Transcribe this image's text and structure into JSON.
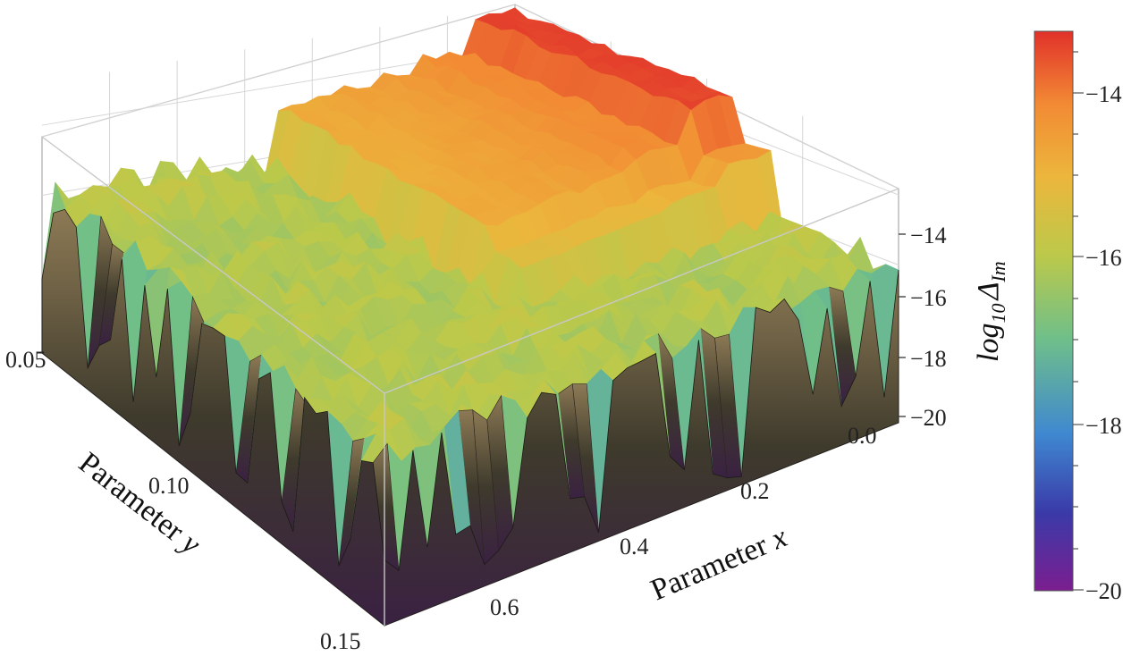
{
  "chart_data": {
    "type": "surface3d",
    "x_axis": {
      "label": "Parameter",
      "var": "x",
      "ticks": [
        "0.0",
        "0.2",
        "0.4",
        "0.6"
      ],
      "range": [
        0.0,
        0.7
      ]
    },
    "y_axis": {
      "label": "Parameter",
      "var": "y",
      "ticks": [
        "0.05",
        "0.10",
        "0.15"
      ],
      "range": [
        0.05,
        0.15
      ]
    },
    "z_axis": {
      "label_prefix": "log",
      "label_base": "10",
      "label_symbol": "Δ",
      "label_subscript": "Im",
      "ticks": [
        "−14",
        "−16",
        "−18",
        "−20"
      ],
      "range": [
        -20.5,
        -12.8
      ]
    },
    "colorbar": {
      "ticks": [
        "−14",
        "−16",
        "−18",
        "−20"
      ],
      "range": [
        -20,
        -12.8
      ],
      "colors": [
        "#7b1e8f",
        "#3a3aa8",
        "#3f88d0",
        "#6fbf8a",
        "#bcc94a",
        "#ecb63c",
        "#f28a34",
        "#e1312a"
      ]
    },
    "surface": {
      "description_levels": "plateau bands ~ -14.5 to -13 at small x, noisy floor ~ -16 with deep spikes to ~ -20 at the front/right edges",
      "plateau_levels": [
        -13.0,
        -13.8,
        -14.1,
        -14.4,
        -14.6
      ],
      "floor_level": -16.0,
      "spike_min": -20.3
    },
    "grid": true,
    "box": true
  }
}
